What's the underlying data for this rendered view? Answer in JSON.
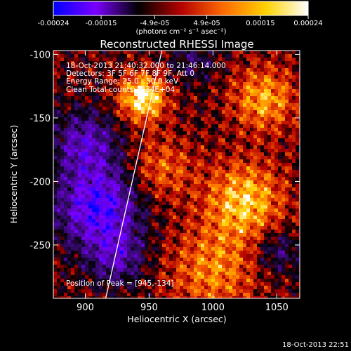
{
  "colorbar": {
    "tick_labels": [
      "-0.00024",
      "-0.00015",
      "-4.9e-05",
      "4.9e-05",
      "0.00015",
      "0.00024"
    ],
    "tick_values": [
      -0.00024,
      -0.00015,
      -4.9e-05,
      4.9e-05,
      0.00015,
      0.00024
    ],
    "range": [
      -0.00024,
      0.00024
    ],
    "units_label": "(photons cm⁻² s⁻¹ asec⁻²)",
    "colors": [
      "#0000ff",
      "#7a00ff",
      "#000000",
      "#b40000",
      "#ff6a00",
      "#ffd200",
      "#ffffff"
    ]
  },
  "chart_data": {
    "type": "heatmap",
    "title": "Reconstructed RHESSI Image",
    "xlabel": "Heliocentric X (arcsec)",
    "ylabel": "Heliocentric Y (arcsec)",
    "xlim": [
      875,
      1068
    ],
    "ylim": [
      -292,
      -97
    ],
    "xticks": [
      900,
      950,
      1000,
      1050
    ],
    "yticks": [
      -100,
      -150,
      -200,
      -250
    ],
    "info_lines": [
      "18-Oct-2013 21:40:32.000 to 21:46:14.000",
      "Detectors: 3F 5F 6F 7F 8F 9F, Att 0",
      "Energy Range: 25.0 - 50.0 keV",
      "Clean    Total counts: 2.34E+04"
    ],
    "peak_text": "Position of Peak = [945,-134]",
    "peak": [
      945,
      -134
    ],
    "limb_line": [
      [
        916,
        -292
      ],
      [
        960,
        -97
      ]
    ]
  },
  "timestamp": "18-Oct-2013 22:51"
}
